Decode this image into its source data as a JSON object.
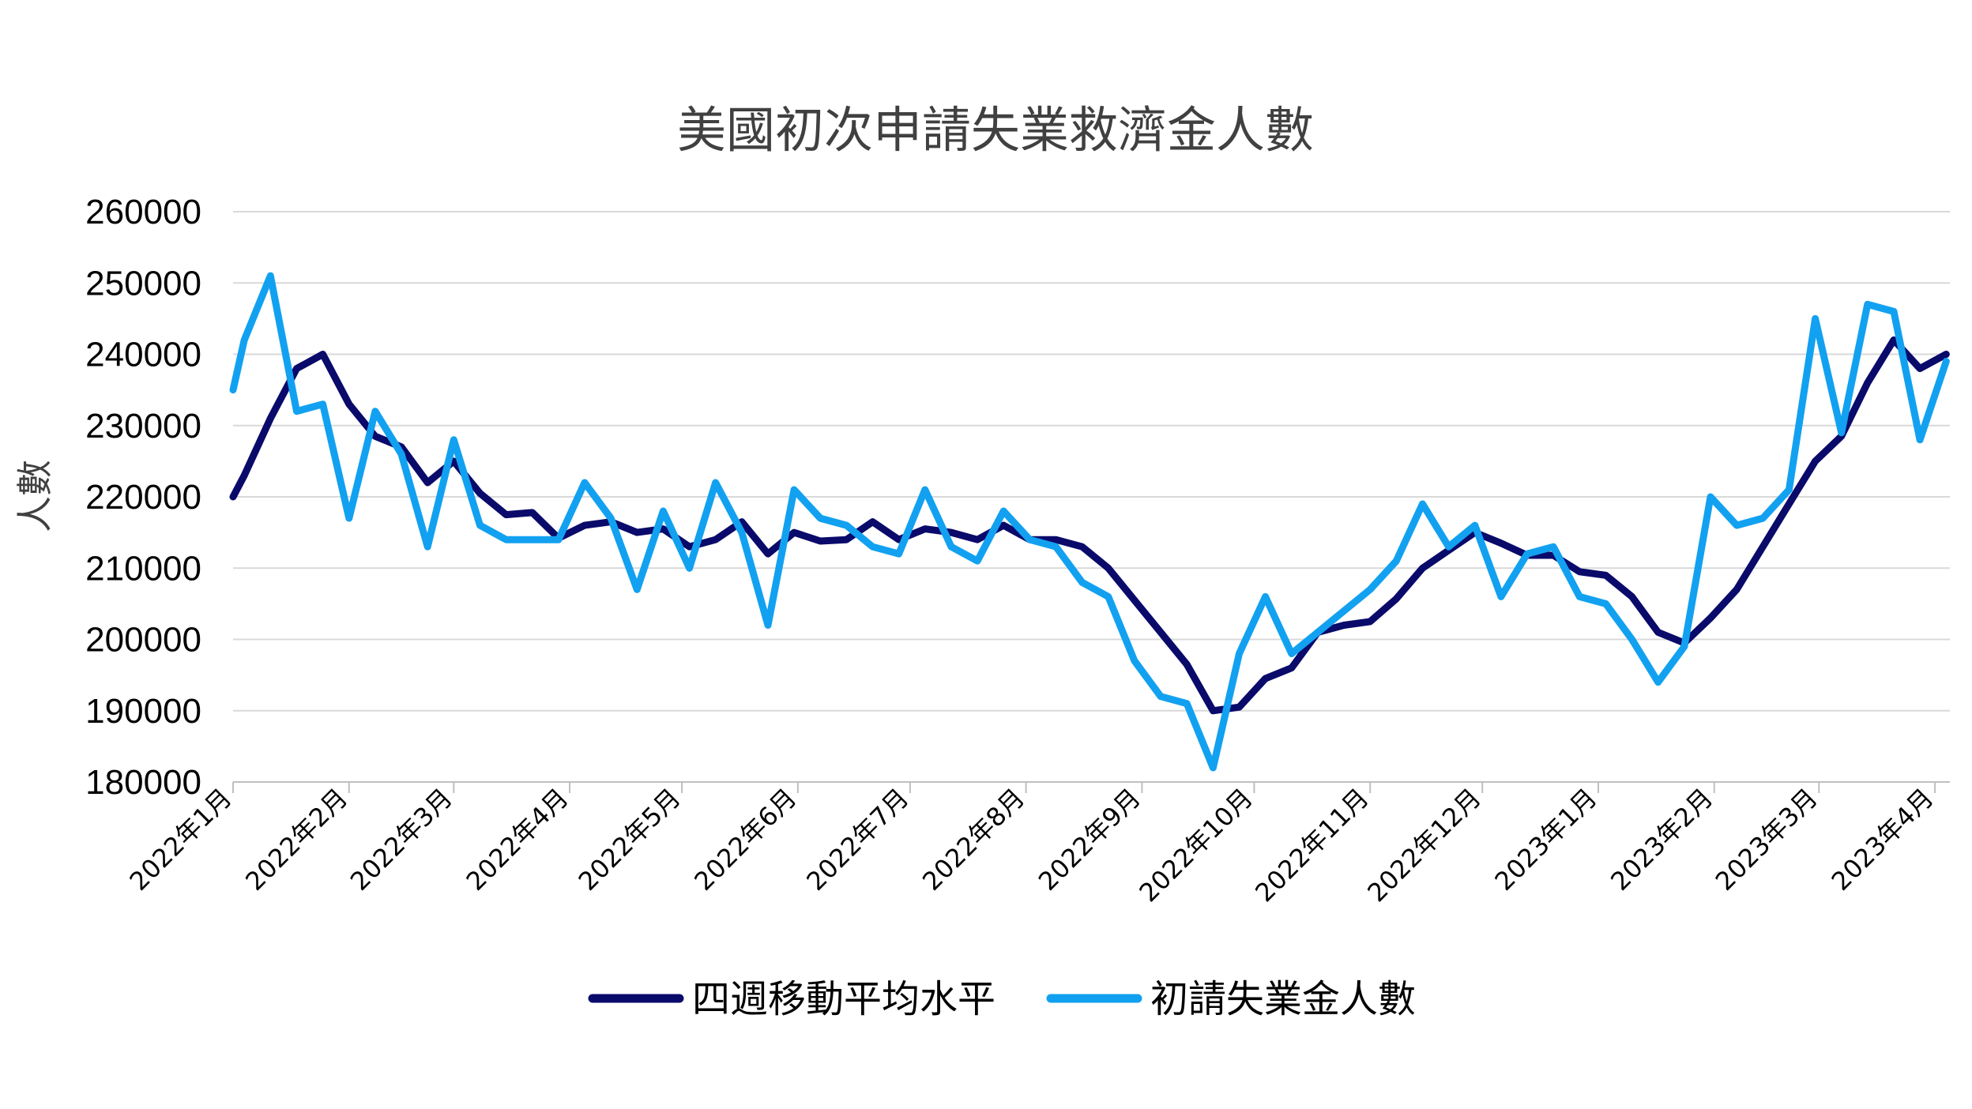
{
  "chart_data": {
    "type": "line",
    "title": "美國初次申請失業救濟金人數",
    "ylabel": "人數",
    "xlabel": "",
    "ylim": [
      180000,
      260000
    ],
    "yticks": [
      180000,
      190000,
      200000,
      210000,
      220000,
      230000,
      240000,
      250000,
      260000
    ],
    "ytick_labels": [
      "180000",
      "190000",
      "200000",
      "210000",
      "220000",
      "230000",
      "240000",
      "250000",
      "260000"
    ],
    "xlim": [
      "2022-01-01",
      "2023-04-05"
    ],
    "categories": [
      "2022年1月",
      "2022年2月",
      "2022年3月",
      "2022年4月",
      "2022年5月",
      "2022年6月",
      "2022年7月",
      "2022年8月",
      "2022年9月",
      "2022年10月",
      "2022年11月",
      "2022年12月",
      "2023年1月",
      "2023年2月",
      "2023年3月",
      "2023年4月"
    ],
    "category_dates": [
      "2022-01-01",
      "2022-02-01",
      "2022-03-01",
      "2022-04-01",
      "2022-05-01",
      "2022-06-01",
      "2022-07-01",
      "2022-08-01",
      "2022-09-01",
      "2022-10-01",
      "2022-11-01",
      "2022-12-01",
      "2023-01-01",
      "2023-02-01",
      "2023-03-01",
      "2023-04-01"
    ],
    "grid": true,
    "legend_position": "bottom",
    "series": [
      {
        "name": "四週移動平均水平",
        "color": "#0a0a6b",
        "x": [
          "2022-01-01",
          "2022-01-04",
          "2022-01-11",
          "2022-01-18",
          "2022-01-25",
          "2022-02-01",
          "2022-02-08",
          "2022-02-15",
          "2022-02-22",
          "2022-03-01",
          "2022-03-08",
          "2022-03-15",
          "2022-03-22",
          "2022-03-29",
          "2022-04-05",
          "2022-04-12",
          "2022-04-19",
          "2022-04-26",
          "2022-05-03",
          "2022-05-10",
          "2022-05-17",
          "2022-05-24",
          "2022-05-31",
          "2022-06-07",
          "2022-06-14",
          "2022-06-21",
          "2022-06-28",
          "2022-07-05",
          "2022-07-12",
          "2022-07-19",
          "2022-07-26",
          "2022-08-02",
          "2022-08-09",
          "2022-08-16",
          "2022-08-23",
          "2022-08-30",
          "2022-09-06",
          "2022-09-13",
          "2022-09-20",
          "2022-09-27",
          "2022-10-04",
          "2022-10-11",
          "2022-10-18",
          "2022-10-25",
          "2022-11-01",
          "2022-11-08",
          "2022-11-15",
          "2022-11-22",
          "2022-11-29",
          "2022-12-06",
          "2022-12-13",
          "2022-12-20",
          "2022-12-27",
          "2023-01-03",
          "2023-01-10",
          "2023-01-17",
          "2023-01-24",
          "2023-01-31",
          "2023-02-07",
          "2023-02-14",
          "2023-02-21",
          "2023-02-28",
          "2023-03-07",
          "2023-03-14",
          "2023-03-21",
          "2023-03-28",
          "2023-04-04"
        ],
        "values": [
          220000,
          223000,
          231000,
          238000,
          240000,
          233000,
          228500,
          227000,
          222000,
          225000,
          220500,
          217500,
          217800,
          214200,
          216000,
          216500,
          215000,
          215500,
          213000,
          214000,
          216500,
          212000,
          215000,
          213800,
          214000,
          216500,
          214000,
          215500,
          215000,
          214000,
          216000,
          214000,
          214000,
          213000,
          210000,
          205500,
          201000,
          196500,
          190000,
          190500,
          194500,
          196000,
          201000,
          202000,
          202500,
          205700,
          210000,
          212500,
          215000,
          213500,
          211800,
          211800,
          209500,
          209000,
          206000,
          201000,
          199500,
          203000,
          207000,
          213000,
          219000,
          225000,
          228500,
          236000,
          242000,
          238000,
          240000
        ]
      },
      {
        "name": "初請失業金人數",
        "color": "#12a1f0",
        "x": [
          "2022-01-01",
          "2022-01-04",
          "2022-01-11",
          "2022-01-18",
          "2022-01-25",
          "2022-02-01",
          "2022-02-08",
          "2022-02-15",
          "2022-02-22",
          "2022-03-01",
          "2022-03-08",
          "2022-03-15",
          "2022-03-22",
          "2022-03-29",
          "2022-04-05",
          "2022-04-12",
          "2022-04-19",
          "2022-04-26",
          "2022-05-03",
          "2022-05-10",
          "2022-05-17",
          "2022-05-24",
          "2022-05-31",
          "2022-06-07",
          "2022-06-14",
          "2022-06-21",
          "2022-06-28",
          "2022-07-05",
          "2022-07-12",
          "2022-07-19",
          "2022-07-26",
          "2022-08-02",
          "2022-08-09",
          "2022-08-16",
          "2022-08-23",
          "2022-08-30",
          "2022-09-06",
          "2022-09-13",
          "2022-09-20",
          "2022-09-27",
          "2022-10-04",
          "2022-10-11",
          "2022-10-18",
          "2022-10-25",
          "2022-11-01",
          "2022-11-08",
          "2022-11-15",
          "2022-11-22",
          "2022-11-29",
          "2022-12-06",
          "2022-12-13",
          "2022-12-20",
          "2022-12-27",
          "2023-01-03",
          "2023-01-10",
          "2023-01-17",
          "2023-01-24",
          "2023-01-31",
          "2023-02-07",
          "2023-02-14",
          "2023-02-21",
          "2023-02-28",
          "2023-03-07",
          "2023-03-14",
          "2023-03-21",
          "2023-03-28",
          "2023-04-04"
        ],
        "values": [
          235000,
          242000,
          251000,
          232000,
          233000,
          217000,
          232000,
          226000,
          213000,
          228000,
          216000,
          214000,
          214000,
          214000,
          222000,
          217000,
          207000,
          218000,
          210000,
          222000,
          215000,
          202000,
          221000,
          217000,
          216000,
          213000,
          212000,
          221000,
          213000,
          211000,
          218000,
          214000,
          213000,
          208000,
          206000,
          197000,
          192000,
          191000,
          182000,
          198000,
          206000,
          198000,
          201000,
          204000,
          207000,
          211000,
          219000,
          213000,
          216000,
          206000,
          212000,
          213000,
          206000,
          205000,
          200000,
          194000,
          199000,
          220000,
          216000,
          217000,
          221000,
          245000,
          229000,
          247000,
          246000,
          228000,
          239000
        ]
      }
    ]
  }
}
